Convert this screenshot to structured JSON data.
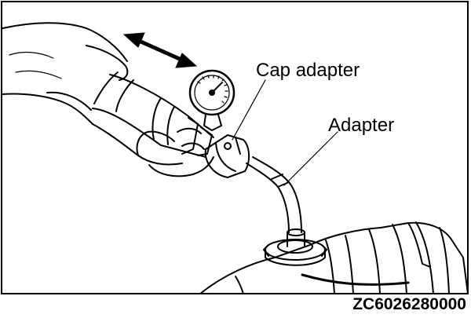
{
  "labels": {
    "cap_adapter": "Cap adapter",
    "adapter": "Adapter"
  },
  "figure_code": "ZC6026280000",
  "icons": {
    "motion_arrow": "double-headed-arrow",
    "gauge": "pressure-gauge-icon"
  },
  "colors": {
    "line": "#000000",
    "background": "#ffffff"
  }
}
